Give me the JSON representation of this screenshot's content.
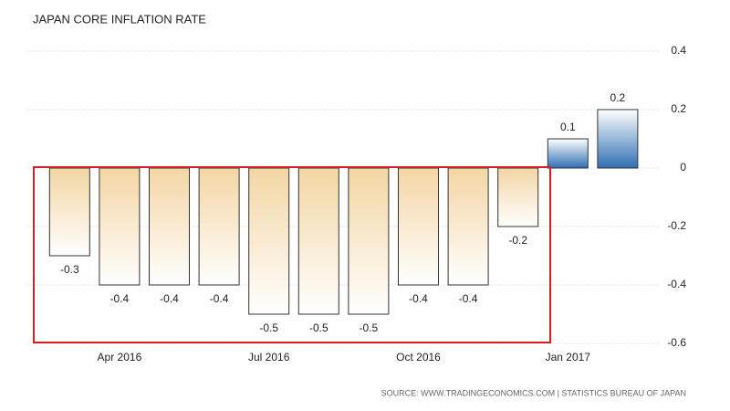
{
  "chart_data": {
    "type": "bar",
    "title": "JAPAN CORE INFLATION RATE",
    "source": "SOURCE: WWW.TRADINGECONOMICS.COM | STATISTICS BUREAU OF JAPAN",
    "categories": [
      null,
      "Apr 2016",
      null,
      null,
      "Jul 2016",
      null,
      null,
      "Oct 2016",
      null,
      null,
      "Jan 2017",
      null
    ],
    "values": [
      -0.3,
      -0.4,
      -0.4,
      -0.4,
      -0.5,
      -0.5,
      -0.5,
      -0.4,
      -0.4,
      -0.2,
      0.1,
      0.2
    ],
    "color_negative": "#f3d6a4",
    "color_positive": "#2f6fb3",
    "ylim": [
      -0.6,
      0.4
    ],
    "yticks": [
      -0.6,
      -0.4,
      -0.2,
      0,
      0.2,
      0.4
    ],
    "grid": true
  }
}
